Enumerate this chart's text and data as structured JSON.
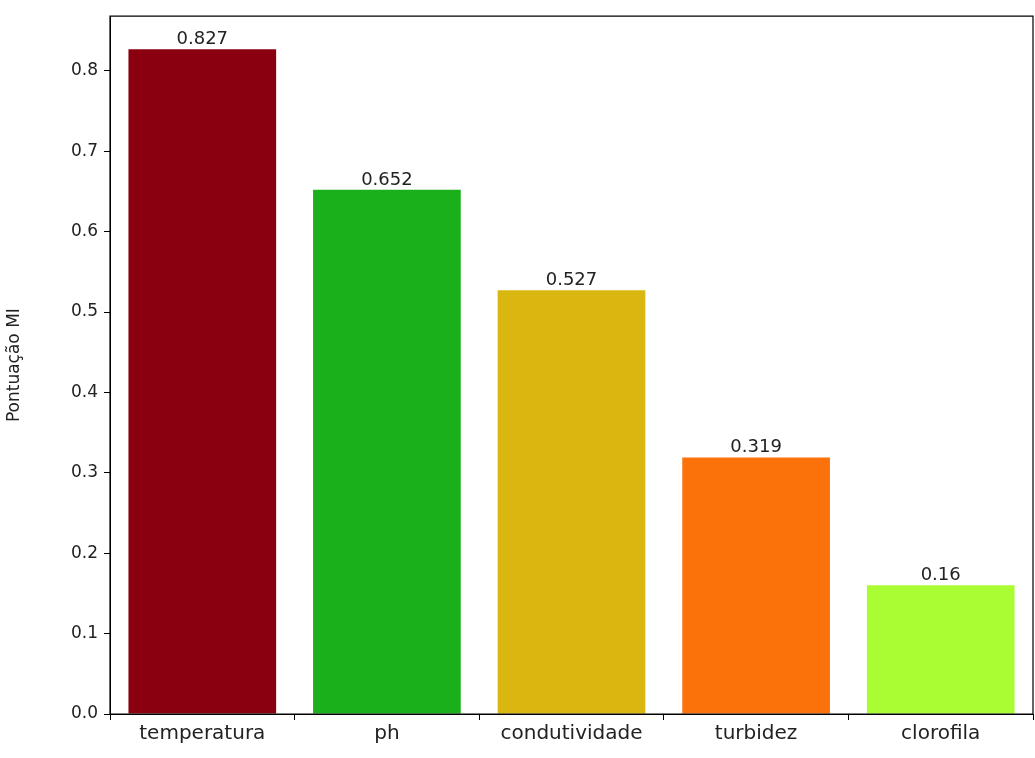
{
  "chart_data": {
    "type": "bar",
    "ylabel": "Pontuação MI",
    "categories": [
      "temperatura",
      "ph",
      "condutividade",
      "turbidez",
      "clorofila"
    ],
    "values": [
      0.827,
      0.652,
      0.527,
      0.319,
      0.16
    ],
    "colors": [
      "#8b0011",
      "#19b01b",
      "#dab610",
      "#fb710a",
      "#a9fd32"
    ],
    "ylim": [
      0,
      0.868
    ],
    "yticks": [
      {
        "value": 0,
        "label": "0.0"
      },
      {
        "value": 0.1,
        "label": "0.1"
      },
      {
        "value": 0.2,
        "label": "0.2"
      },
      {
        "value": 0.3,
        "label": "0.3"
      },
      {
        "value": 0.4,
        "label": "0.4"
      },
      {
        "value": 0.5,
        "label": "0.5"
      },
      {
        "value": 0.6,
        "label": "0.6"
      },
      {
        "value": 0.7,
        "label": "0.7"
      },
      {
        "value": 0.8,
        "label": "0.8"
      }
    ],
    "data_labels": true,
    "grid": false,
    "legend": false
  }
}
